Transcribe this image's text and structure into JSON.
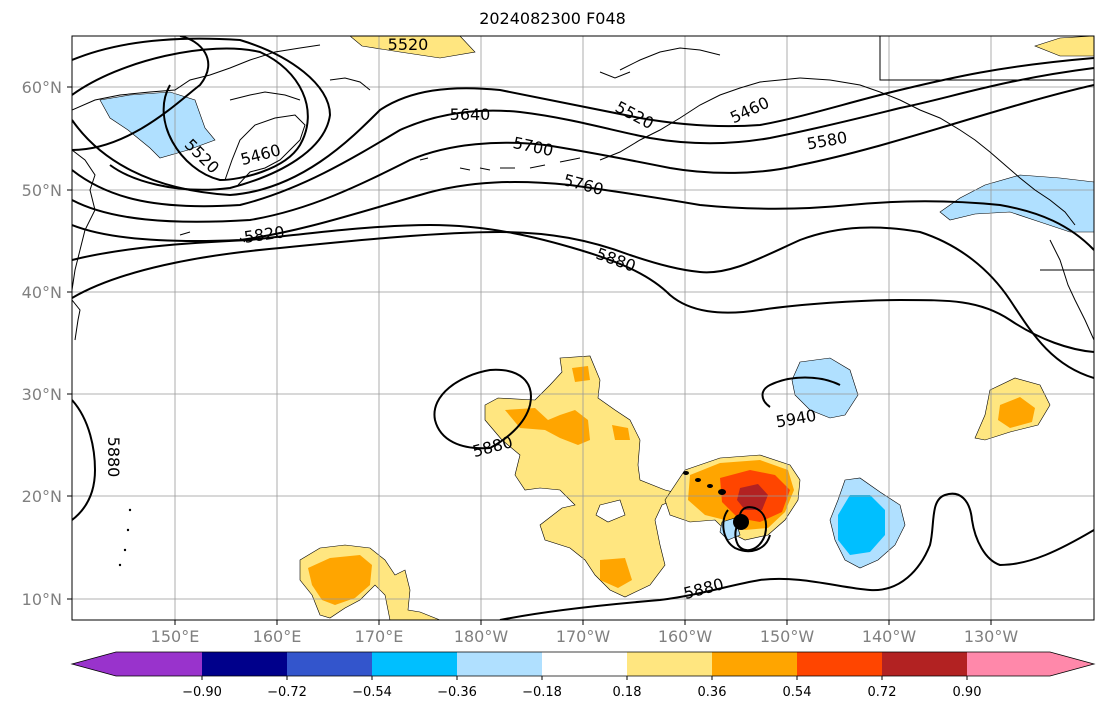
{
  "title": "2024082300 F048",
  "map": {
    "lon_ticks": [
      "150°E",
      "160°E",
      "170°E",
      "180°W",
      "170°W",
      "160°W",
      "150°W",
      "140°W",
      "130°W"
    ],
    "lat_ticks": [
      "10°N",
      "20°N",
      "30°N",
      "40°N",
      "50°N",
      "60°N"
    ],
    "contour_labels": [
      "5520",
      "5460",
      "5520",
      "5640",
      "5700",
      "5760",
      "5820",
      "5520",
      "5460",
      "5580",
      "5880",
      "5880",
      "5880",
      "5940",
      "5880"
    ],
    "storm_marker": "storm-center-dot"
  },
  "colorbar": {
    "tick_labels": [
      "−0.90",
      "−0.72",
      "−0.54",
      "−0.36",
      "−0.18",
      "0.18",
      "0.36",
      "0.54",
      "0.72",
      "0.90"
    ],
    "colors": [
      "#9933cc",
      "#00008b",
      "#3355cc",
      "#00bfff",
      "#b0e0ff",
      "#ffffff",
      "#ffe680",
      "#ffa500",
      "#ff4500",
      "#b22222",
      "#ff88aa"
    ]
  }
}
